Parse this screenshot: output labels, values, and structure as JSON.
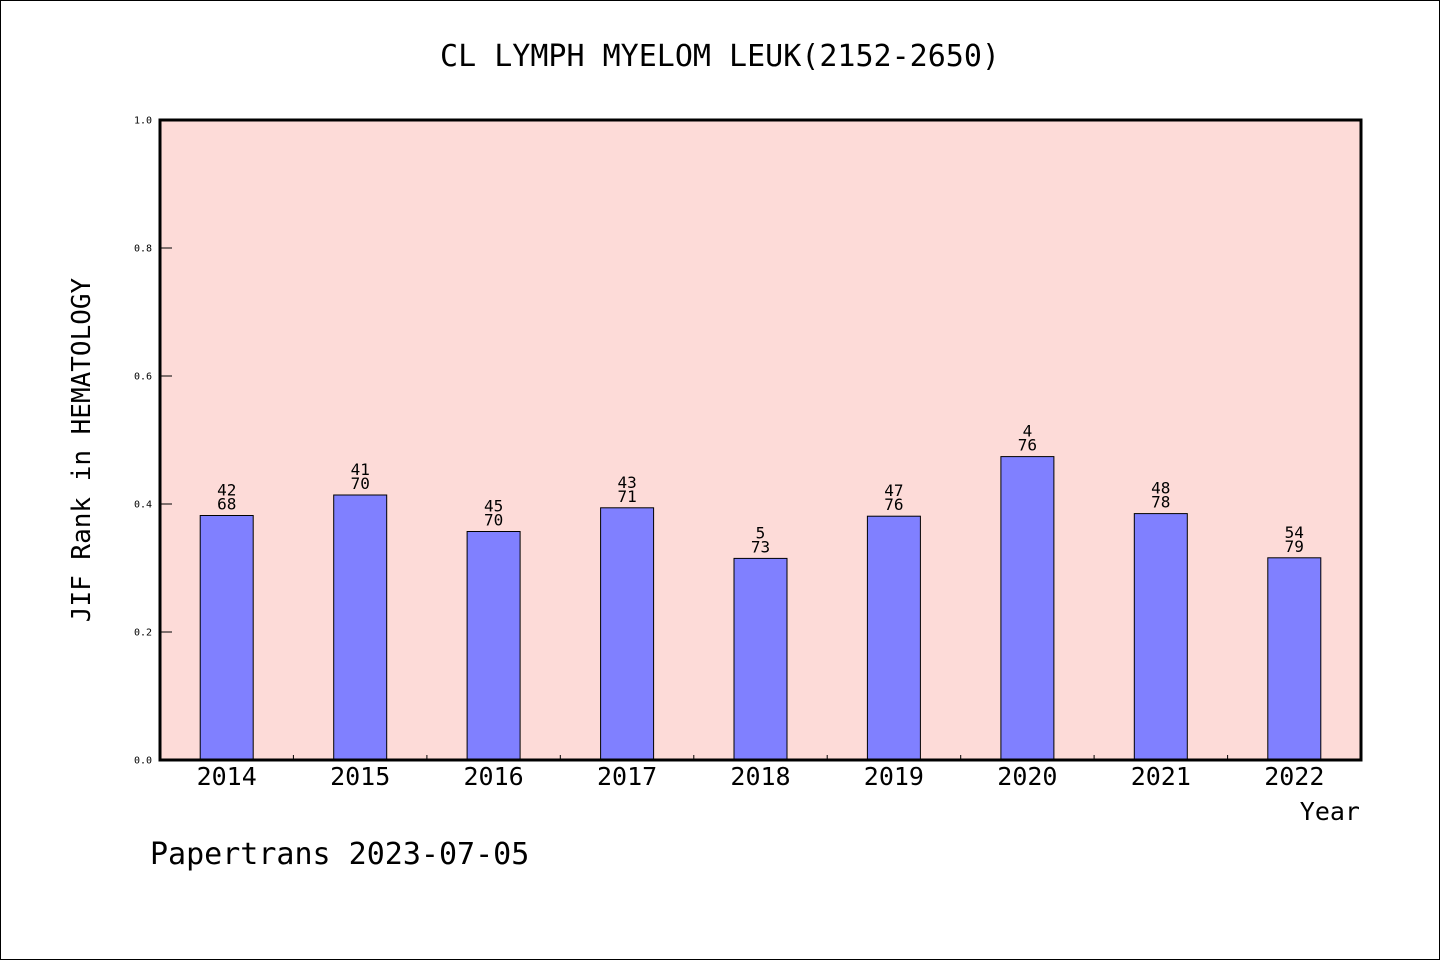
{
  "chart_data": {
    "type": "bar",
    "title": "CL LYMPH MYELOM LEUK(2152-2650)",
    "xlabel": "Year",
    "ylabel": "JIF Rank in HEMATOLOGY",
    "ylim": [
      0,
      1.0
    ],
    "yticks": [
      "0.0",
      "0.2",
      "0.4",
      "0.6",
      "0.8",
      "1.0"
    ],
    "categories": [
      "2014",
      "2015",
      "2016",
      "2017",
      "2018",
      "2019",
      "2020",
      "2021",
      "2022"
    ],
    "values": [
      0.382,
      0.414,
      0.357,
      0.394,
      0.315,
      0.381,
      0.474,
      0.385,
      0.316
    ],
    "rank_labels": [
      "42",
      "41",
      "45",
      "43",
      "5",
      "47",
      "4",
      "48",
      "54"
    ],
    "total_labels": [
      "68",
      "70",
      "70",
      "71",
      "73",
      "76",
      "76",
      "78",
      "79"
    ],
    "grid": false,
    "colors": {
      "plot_background": "#fddbd8",
      "bar_fill": "#8080ff",
      "bar_stroke": "#000000"
    }
  },
  "footer": "Papertrans 2023-07-05"
}
